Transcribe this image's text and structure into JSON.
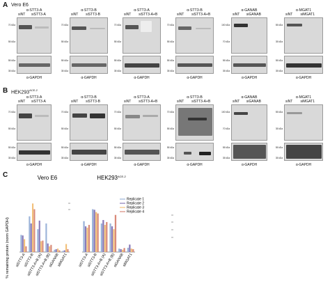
{
  "panel_a": {
    "letter": "A",
    "cell_line": "Vero E6",
    "blots": [
      {
        "target": "α-STT3-A",
        "lane1": "siNT",
        "lane2": "siSTT3-A",
        "marker_top": [
          "70 kDa",
          "55 kDa"
        ],
        "marker_bottom": [
          "55 kDa",
          "35 kDa"
        ],
        "loading": "α-GAPDH"
      },
      {
        "target": "α-STT3-B",
        "lane1": "siNT",
        "lane2": "siSTT3-B",
        "marker_top": [
          "70 kDa",
          "55 kDa"
        ],
        "marker_bottom": [
          "55 kDa",
          "35 kDa"
        ],
        "loading": "α-GAPDH"
      },
      {
        "target": "α-STT3-A",
        "lane1": "siNT",
        "lane2": "siSTT3-A+B",
        "marker_top": [
          "70 kDa",
          "55 kDa"
        ],
        "marker_bottom": [
          "55 kDa",
          "35 kDa"
        ],
        "loading": "α-GAPDH"
      },
      {
        "target": "α-STT3-B",
        "lane1": "siNT",
        "lane2": "siSTT3-A+B",
        "marker_top": [
          "70 kDa",
          "55 kDa"
        ],
        "marker_bottom": [
          "55 kDa",
          "35 kDa"
        ],
        "loading": "α-GAPDH"
      },
      {
        "target": "α-GANAB",
        "lane1": "siNT",
        "lane2": "siGANAB",
        "marker_top": [
          "100 kDa",
          "70 kDa"
        ],
        "marker_bottom": [
          "55 kDa",
          "35 kDa"
        ],
        "loading": "α-GAPDH"
      },
      {
        "target": "α-MGAT1",
        "lane1": "siNT",
        "lane2": "siMGAT1",
        "marker_top": [
          "55 kDa",
          "35 kDa"
        ],
        "marker_bottom": [
          "55 kDa",
          "35 kDa"
        ],
        "loading": "α-GAPDH"
      }
    ]
  },
  "panel_b": {
    "letter": "B",
    "cell_line": "HEK293",
    "cell_line_sup": "ACE-2",
    "blots": [
      {
        "target": "α-STT3-A",
        "lane1": "siNT",
        "lane2": "siSTT3-A",
        "marker_top": [
          "70 kDa",
          "55 kDa"
        ],
        "marker_bottom": [
          "55 kDa",
          "35 kDa"
        ],
        "loading": "α-GAPDH"
      },
      {
        "target": "α-STT3-B",
        "lane1": "siNT",
        "lane2": "siSTT3-B",
        "marker_top": [
          "70 kDa",
          "55 kDa"
        ],
        "marker_bottom": [
          "55 kDa",
          "35 kDa"
        ],
        "loading": "α-GAPDH"
      },
      {
        "target": "α-STT3-A",
        "lane1": "siNT",
        "lane2": "siSTT3-A+B",
        "marker_top": [
          "70 kDa",
          "55 kDa"
        ],
        "marker_bottom": [
          "55 kDa",
          "35 kDa"
        ],
        "loading": "α-GAPDH"
      },
      {
        "target": "α-STT3-B",
        "lane1": "siNT",
        "lane2": "siSTT3-A+B",
        "marker_top": [
          "70 kDa",
          "55 kDa"
        ],
        "marker_bottom": [
          "55 kDa",
          "35 kDa"
        ],
        "loading": "α-GAPDH"
      },
      {
        "target": "α-GANAB",
        "lane1": "siNT",
        "lane2": "siGANAB",
        "marker_top": [
          "100 kDa",
          "70 kDa"
        ],
        "marker_bottom": [
          "55 kDa",
          "35 kDa"
        ],
        "loading": "α-GAPDH"
      },
      {
        "target": "α-MGAT1",
        "lane1": "siNT",
        "lane2": "siMGAT1",
        "marker_top": [
          "55 kDa",
          "35 kDa"
        ],
        "marker_bottom": [
          "55 kDa",
          "35 kDa"
        ],
        "loading": "α-GAPDH"
      }
    ]
  },
  "panel_c": {
    "letter": "C",
    "chart_data": {
      "type": "bar",
      "ylabel": "% remaining protein (norm GAPDH)",
      "ylim": [
        0,
        200
      ],
      "grid": false,
      "legend_position": "top-right",
      "groups": [
        {
          "title": "Vero E6",
          "title_sup": ""
        },
        {
          "title": "HEK293",
          "title_sup": "ACE-2"
        }
      ],
      "categories": [
        "siSTT3-A",
        "siSTT3-B",
        "siSTT3-A+B (A)",
        "siSTT3-A+B (B)",
        "siGANAB",
        "siMGAT1"
      ],
      "series": [
        {
          "name": "Replicate 1",
          "color": "#9bb3d9"
        },
        {
          "name": "Replicate 2",
          "color": "#8a7ab8"
        },
        {
          "name": "Replicate 3",
          "color": "#f2c07a"
        },
        {
          "name": "Replicate 4",
          "color": "#d98a7a"
        }
      ],
      "values": {
        "Vero E6": [
          [
            60,
            58,
            45,
            20
          ],
          [
            125,
            100,
            170,
            150
          ],
          [
            80,
            110,
            38,
            40
          ],
          [
            100,
            30,
            20,
            25
          ],
          [
            8,
            10,
            12,
            6
          ],
          [
            4,
            6,
            28,
            10
          ]
        ],
        "HEK293": [
          [
            108,
            90,
            85,
            95
          ],
          [
            150,
            148,
            140,
            135
          ],
          [
            100,
            112,
            95,
            105
          ],
          [
            100,
            90,
            80,
            130
          ],
          [
            12,
            10,
            8,
            14
          ],
          [
            15,
            26,
            12,
            10
          ]
        ]
      }
    }
  }
}
